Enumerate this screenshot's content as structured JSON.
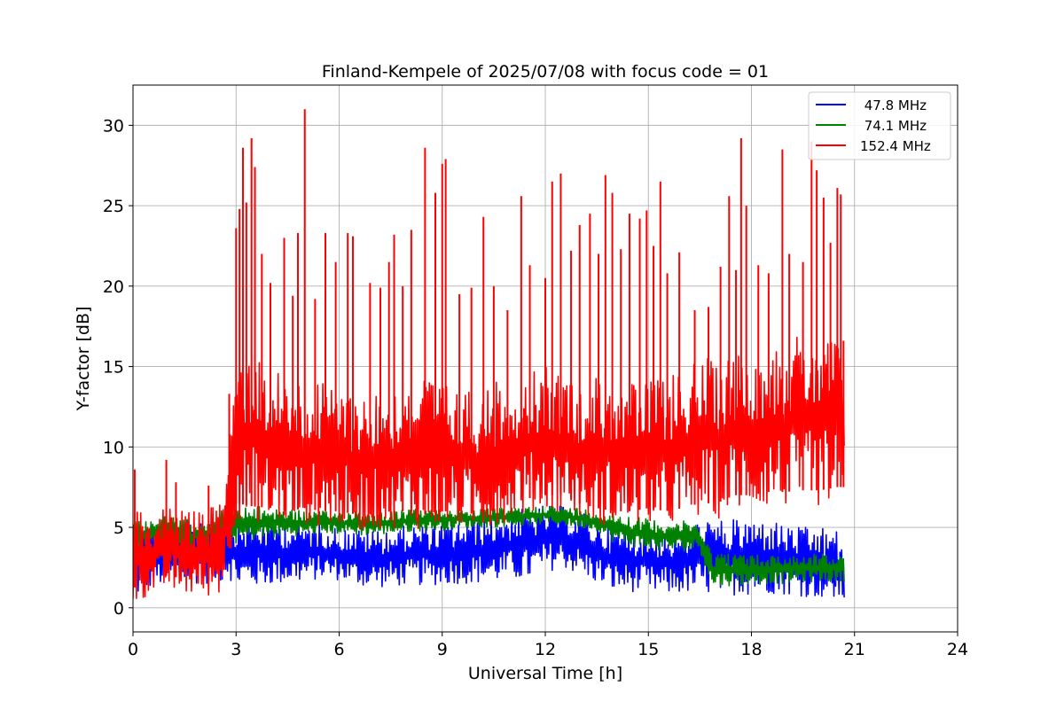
{
  "chart_data": {
    "type": "line",
    "title": "Finland-Kempele of 2025/07/08 with focus code = 01",
    "xlabel": "Universal Time [h]",
    "ylabel": "Y-factor [dB]",
    "xlim": [
      0,
      24
    ],
    "ylim": [
      -1.5,
      32.5
    ],
    "xticks": [
      0,
      3,
      6,
      9,
      12,
      15,
      18,
      21,
      24
    ],
    "yticks": [
      0,
      5,
      10,
      15,
      20,
      25,
      30
    ],
    "grid": true,
    "legend_position": "top-right",
    "series": [
      {
        "name": " 47.8 MHz",
        "color": "#0000ff",
        "x": [
          0.0,
          0.5,
          1.0,
          1.5,
          2.0,
          2.5,
          2.8,
          3.0,
          3.5,
          4.0,
          4.5,
          5.0,
          5.5,
          6.0,
          6.5,
          7.0,
          7.5,
          8.0,
          8.5,
          9.0,
          9.5,
          10.0,
          10.5,
          11.0,
          11.5,
          12.0,
          12.5,
          13.0,
          13.5,
          14.0,
          14.5,
          15.0,
          15.5,
          16.0,
          16.5,
          17.0,
          17.5,
          18.0,
          18.5,
          19.0,
          19.5,
          20.0,
          20.5,
          20.7
        ],
        "y_low": [
          0.5,
          1.2,
          1.5,
          1.5,
          1.5,
          1.5,
          1.8,
          1.3,
          1.3,
          1.4,
          1.5,
          1.6,
          1.8,
          1.7,
          1.4,
          1.2,
          1.3,
          1.4,
          1.4,
          1.4,
          1.5,
          1.5,
          1.6,
          1.7,
          1.7,
          2.2,
          2.5,
          2.0,
          1.5,
          1.0,
          1.0,
          0.9,
          0.8,
          0.9,
          0.9,
          0.8,
          0.8,
          0.8,
          0.9,
          0.8,
          0.7,
          0.6,
          0.4,
          0.3
        ],
        "y_high": [
          5.0,
          5.2,
          5.0,
          5.4,
          5.8,
          6.2,
          7.0,
          5.5,
          5.5,
          5.5,
          5.4,
          5.3,
          5.2,
          5.0,
          4.9,
          4.9,
          5.0,
          5.1,
          5.3,
          5.2,
          5.4,
          5.6,
          5.8,
          6.0,
          6.2,
          6.4,
          6.3,
          6.0,
          5.5,
          5.0,
          5.0,
          4.8,
          4.8,
          4.7,
          5.5,
          5.4,
          5.5,
          5.5,
          5.5,
          5.2,
          5.0,
          5.0,
          4.8,
          4.0
        ]
      },
      {
        "name": " 74.1 MHz",
        "color": "#008000",
        "x": [
          0.0,
          0.5,
          1.0,
          1.5,
          2.0,
          2.5,
          2.8,
          3.0,
          3.5,
          4.0,
          4.5,
          5.0,
          5.5,
          6.0,
          6.5,
          7.0,
          7.5,
          8.0,
          8.5,
          9.0,
          9.5,
          10.0,
          10.5,
          11.0,
          11.5,
          12.0,
          12.5,
          13.0,
          13.5,
          14.0,
          14.5,
          15.0,
          15.5,
          16.0,
          16.5,
          16.85,
          17.0,
          17.5,
          18.0,
          18.5,
          19.0,
          19.5,
          20.0,
          20.5,
          20.7
        ],
        "y_low": [
          3.5,
          3.8,
          4.0,
          3.3,
          3.5,
          4.0,
          4.0,
          4.0,
          4.2,
          4.3,
          4.4,
          4.5,
          4.6,
          4.6,
          4.5,
          4.5,
          4.6,
          4.7,
          4.8,
          4.8,
          4.9,
          5.0,
          5.0,
          5.1,
          5.1,
          5.2,
          5.1,
          5.0,
          4.8,
          4.0,
          3.8,
          3.6,
          3.5,
          3.5,
          3.6,
          1.2,
          1.3,
          1.4,
          1.4,
          1.5,
          1.5,
          1.6,
          1.6,
          1.6,
          1.6
        ],
        "y_high": [
          5.5,
          5.5,
          5.8,
          5.5,
          5.5,
          6.0,
          6.2,
          6.2,
          6.3,
          6.3,
          6.2,
          6.0,
          6.0,
          6.0,
          6.1,
          6.0,
          6.0,
          6.1,
          6.2,
          6.1,
          6.2,
          6.1,
          6.2,
          6.2,
          6.3,
          6.4,
          6.3,
          6.2,
          6.0,
          6.0,
          5.8,
          5.5,
          5.5,
          5.4,
          5.3,
          3.5,
          3.5,
          3.4,
          3.3,
          3.3,
          3.3,
          3.3,
          3.4,
          3.3,
          3.3
        ]
      },
      {
        "name": "152.4 MHz",
        "color": "#ff0000",
        "x": [
          0.0,
          0.5,
          1.0,
          1.5,
          2.0,
          2.5,
          2.75,
          3.0,
          3.5,
          4.0,
          4.5,
          5.0,
          5.5,
          6.0,
          6.5,
          7.0,
          7.5,
          8.0,
          8.5,
          9.0,
          9.5,
          10.0,
          10.5,
          11.0,
          11.5,
          12.0,
          12.5,
          13.0,
          13.5,
          14.0,
          14.5,
          15.0,
          15.5,
          16.0,
          16.5,
          17.0,
          17.5,
          18.0,
          18.5,
          19.0,
          19.5,
          20.0,
          20.5,
          20.7
        ],
        "y_low": [
          0.2,
          0.8,
          1.0,
          0.8,
          0.6,
          0.8,
          2.0,
          5.5,
          5.3,
          5.2,
          5.0,
          5.2,
          5.0,
          5.0,
          4.8,
          4.8,
          5.0,
          5.0,
          4.8,
          5.0,
          5.0,
          4.8,
          5.0,
          5.5,
          5.8,
          6.0,
          6.0,
          5.5,
          5.2,
          5.0,
          5.0,
          5.2,
          5.0,
          5.2,
          5.5,
          5.5,
          6.0,
          6.0,
          6.2,
          6.2,
          6.3,
          6.3,
          6.5,
          6.5
        ],
        "y_high": [
          6.0,
          5.8,
          6.5,
          6.0,
          6.0,
          6.5,
          9.5,
          16.0,
          16.0,
          15.0,
          14.5,
          14.0,
          14.0,
          14.0,
          13.5,
          13.5,
          13.5,
          14.0,
          14.5,
          14.0,
          13.5,
          13.5,
          14.0,
          14.5,
          14.5,
          15.0,
          14.5,
          14.0,
          14.5,
          14.5,
          14.0,
          14.0,
          14.5,
          15.0,
          15.5,
          15.5,
          16.0,
          16.0,
          16.5,
          16.5,
          17.0,
          17.0,
          17.0,
          16.5
        ],
        "spikes": [
          {
            "x": 0.05,
            "y": 8.6
          },
          {
            "x": 0.97,
            "y": 9.2
          },
          {
            "x": 1.25,
            "y": 7.8
          },
          {
            "x": 2.2,
            "y": 7.6
          },
          {
            "x": 2.8,
            "y": 13.3
          },
          {
            "x": 3.0,
            "y": 23.6
          },
          {
            "x": 3.1,
            "y": 24.8
          },
          {
            "x": 3.2,
            "y": 28.6
          },
          {
            "x": 3.3,
            "y": 25.2
          },
          {
            "x": 3.45,
            "y": 29.2
          },
          {
            "x": 3.55,
            "y": 27.4
          },
          {
            "x": 3.75,
            "y": 22.0
          },
          {
            "x": 4.0,
            "y": 20.2
          },
          {
            "x": 4.4,
            "y": 23.0
          },
          {
            "x": 4.65,
            "y": 19.4
          },
          {
            "x": 4.8,
            "y": 23.3
          },
          {
            "x": 5.0,
            "y": 31.0
          },
          {
            "x": 5.3,
            "y": 19.2
          },
          {
            "x": 5.6,
            "y": 23.3
          },
          {
            "x": 5.9,
            "y": 21.5
          },
          {
            "x": 6.25,
            "y": 23.3
          },
          {
            "x": 6.4,
            "y": 23.1
          },
          {
            "x": 6.9,
            "y": 20.2
          },
          {
            "x": 7.2,
            "y": 19.9
          },
          {
            "x": 7.45,
            "y": 21.5
          },
          {
            "x": 7.6,
            "y": 23.2
          },
          {
            "x": 7.85,
            "y": 20.0
          },
          {
            "x": 8.1,
            "y": 23.5
          },
          {
            "x": 8.5,
            "y": 28.6
          },
          {
            "x": 8.8,
            "y": 25.8
          },
          {
            "x": 9.0,
            "y": 27.6
          },
          {
            "x": 9.1,
            "y": 27.9
          },
          {
            "x": 9.5,
            "y": 19.5
          },
          {
            "x": 9.85,
            "y": 19.9
          },
          {
            "x": 10.2,
            "y": 24.3
          },
          {
            "x": 10.5,
            "y": 20.0
          },
          {
            "x": 10.9,
            "y": 18.5
          },
          {
            "x": 11.3,
            "y": 25.6
          },
          {
            "x": 11.55,
            "y": 21.3
          },
          {
            "x": 12.0,
            "y": 20.5
          },
          {
            "x": 12.2,
            "y": 26.5
          },
          {
            "x": 12.45,
            "y": 27.0
          },
          {
            "x": 12.75,
            "y": 22.2
          },
          {
            "x": 13.0,
            "y": 23.8
          },
          {
            "x": 13.3,
            "y": 24.5
          },
          {
            "x": 13.55,
            "y": 22.0
          },
          {
            "x": 13.75,
            "y": 26.9
          },
          {
            "x": 13.95,
            "y": 25.8
          },
          {
            "x": 14.2,
            "y": 22.3
          },
          {
            "x": 14.45,
            "y": 24.5
          },
          {
            "x": 14.75,
            "y": 24.2
          },
          {
            "x": 14.95,
            "y": 24.7
          },
          {
            "x": 15.15,
            "y": 22.5
          },
          {
            "x": 15.35,
            "y": 26.5
          },
          {
            "x": 15.55,
            "y": 20.8
          },
          {
            "x": 15.9,
            "y": 22.1
          },
          {
            "x": 16.35,
            "y": 18.5
          },
          {
            "x": 16.75,
            "y": 18.7
          },
          {
            "x": 17.1,
            "y": 21.2
          },
          {
            "x": 17.35,
            "y": 25.6
          },
          {
            "x": 17.55,
            "y": 21.0
          },
          {
            "x": 17.7,
            "y": 29.2
          },
          {
            "x": 17.85,
            "y": 25.0
          },
          {
            "x": 18.2,
            "y": 21.3
          },
          {
            "x": 18.5,
            "y": 20.8
          },
          {
            "x": 18.9,
            "y": 28.5
          },
          {
            "x": 19.1,
            "y": 22.0
          },
          {
            "x": 19.5,
            "y": 21.5
          },
          {
            "x": 19.75,
            "y": 29.0
          },
          {
            "x": 19.9,
            "y": 27.2
          },
          {
            "x": 20.1,
            "y": 25.5
          },
          {
            "x": 20.3,
            "y": 22.7
          },
          {
            "x": 20.5,
            "y": 26.1
          },
          {
            "x": 20.6,
            "y": 25.7
          },
          {
            "x": 20.68,
            "y": 16.6
          }
        ]
      }
    ]
  }
}
